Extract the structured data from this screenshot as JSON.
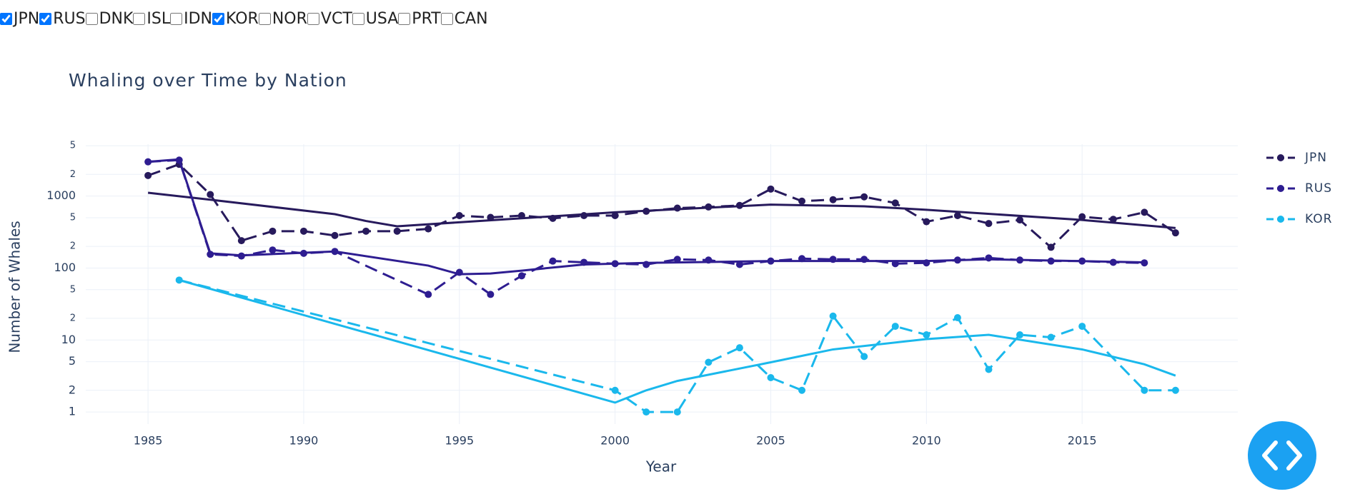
{
  "checkboxes": [
    {
      "label": "JPN",
      "checked": true
    },
    {
      "label": "RUS",
      "checked": true
    },
    {
      "label": "DNK",
      "checked": false
    },
    {
      "label": "ISL",
      "checked": false
    },
    {
      "label": "IDN",
      "checked": false
    },
    {
      "label": "KOR",
      "checked": true
    },
    {
      "label": "NOR",
      "checked": false
    },
    {
      "label": "VCT",
      "checked": false
    },
    {
      "label": "USA",
      "checked": false
    },
    {
      "label": "PRT",
      "checked": false
    },
    {
      "label": "CAN",
      "checked": false
    }
  ],
  "chart_data": {
    "type": "line",
    "title": "Whaling over Time by Nation",
    "x_label": "Year",
    "y_label": "Number of Whales",
    "log_y": true,
    "grid": true,
    "xlim": [
      1983,
      2020
    ],
    "xticks": [
      1985,
      1990,
      1995,
      2000,
      2005,
      2010,
      2015
    ],
    "ylim": [
      0.68,
      5250
    ],
    "yticks": [
      1,
      {
        "value": 2,
        "label": "2"
      },
      {
        "value": 5,
        "label": "5"
      },
      10,
      {
        "value": 20,
        "label": "2"
      },
      {
        "value": 50,
        "label": "5"
      },
      100,
      {
        "value": 200,
        "label": "2"
      },
      {
        "value": 500,
        "label": "5"
      },
      1000,
      {
        "value": 2000,
        "label": "2"
      },
      {
        "value": 5000,
        "label": "5"
      }
    ],
    "series": [
      {
        "name": "JPN",
        "color": "#271a5c",
        "x": [
          1985,
          1986,
          1987,
          1988,
          1989,
          1990,
          1991,
          1992,
          1993,
          1994,
          1995,
          1996,
          1997,
          1998,
          1999,
          2000,
          2001,
          2002,
          2003,
          2004,
          2005,
          2006,
          2007,
          2008,
          2009,
          2010,
          2011,
          2012,
          2013,
          2014,
          2015,
          2016,
          2017,
          2018
        ],
        "values": [
          1930,
          2760,
          1050,
          240,
          325,
          325,
          283,
          325,
          325,
          350,
          535,
          505,
          535,
          490,
          535,
          535,
          615,
          680,
          705,
          740,
          1250,
          850,
          890,
          975,
          800,
          440,
          535,
          415,
          465,
          194,
          515,
          475,
          595,
          308
        ],
        "trend_x": [
          1985,
          1987,
          1991,
          1992,
          1993,
          2000,
          2005,
          2008,
          2010,
          2015,
          2018
        ],
        "trend_values": [
          1110,
          890,
          560,
          450,
          380,
          595,
          760,
          720,
          645,
          465,
          360
        ]
      },
      {
        "name": "RUS",
        "color": "#2e1d91",
        "x": [
          1985,
          1986,
          1987,
          1988,
          1989,
          1990,
          1991,
          1994,
          1995,
          1996,
          1997,
          1998,
          1999,
          2000,
          2001,
          2002,
          2003,
          2004,
          2005,
          2006,
          2007,
          2008,
          2009,
          2010,
          2011,
          2012,
          2013,
          2014,
          2015,
          2016,
          2017
        ],
        "values": [
          2990,
          3160,
          155,
          147,
          178,
          160,
          170,
          43,
          87,
          43,
          78,
          125,
          120,
          115,
          112,
          132,
          129,
          112,
          125,
          135,
          132,
          132,
          115,
          118,
          129,
          138,
          129,
          125,
          125,
          120,
          118
        ],
        "trend_x": [
          1985,
          1986,
          1987,
          1988,
          1991,
          1994,
          1995,
          1996,
          1997,
          1999,
          2001,
          2005,
          2010,
          2012,
          2017
        ],
        "trend_values": [
          2990,
          3230,
          160,
          150,
          170,
          108,
          82,
          84,
          92,
          112,
          118,
          125,
          125,
          132,
          120
        ]
      },
      {
        "name": "KOR",
        "color": "#1ab8ec",
        "x": [
          1986,
          2000,
          2001,
          2002,
          2003,
          2004,
          2005,
          2006,
          2007,
          2008,
          2009,
          2010,
          2011,
          2012,
          2013,
          2014,
          2015,
          2017,
          2018
        ],
        "values": [
          68,
          2,
          1,
          1,
          4.9,
          7.8,
          3,
          2,
          21.5,
          5.9,
          15.5,
          11.8,
          20.4,
          3.9,
          11.8,
          10.9,
          15.5,
          2,
          2
        ],
        "trend_x": [
          1986,
          2000,
          2001,
          2002,
          2005,
          2007,
          2010,
          2012,
          2015,
          2017,
          2018
        ],
        "trend_values": [
          68,
          1.35,
          2,
          2.7,
          4.9,
          7.4,
          10.3,
          11.8,
          7.4,
          4.6,
          3.2
        ]
      }
    ]
  }
}
